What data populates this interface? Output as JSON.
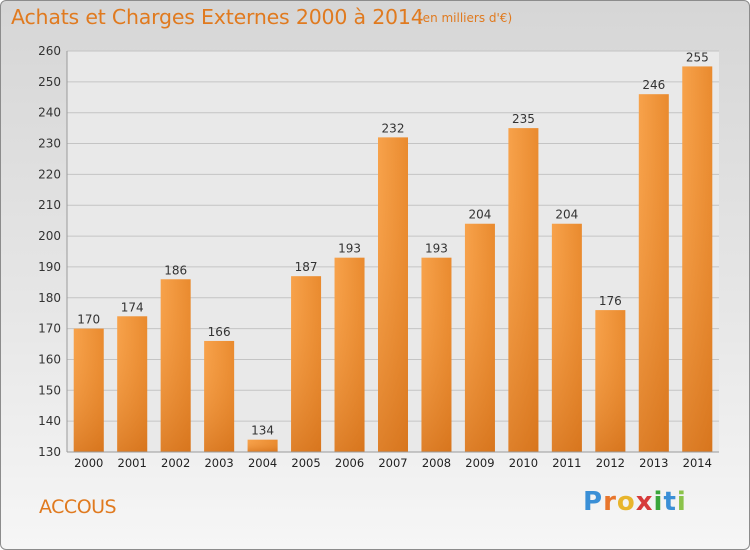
{
  "chart_data": {
    "type": "bar",
    "title": "Achats et Charges Externes 2000 à 2014",
    "subtitle": "(en milliers d'€)",
    "categories": [
      "2000",
      "2001",
      "2002",
      "2003",
      "2004",
      "2005",
      "2006",
      "2007",
      "2008",
      "2009",
      "2010",
      "2011",
      "2012",
      "2013",
      "2014"
    ],
    "values": [
      170,
      174,
      186,
      166,
      134,
      187,
      193,
      232,
      193,
      204,
      235,
      204,
      176,
      246,
      255
    ],
    "ylim": [
      130,
      260
    ],
    "yticks": [
      130,
      140,
      150,
      160,
      170,
      180,
      190,
      200,
      210,
      220,
      230,
      240,
      250,
      260
    ],
    "grid": true,
    "bar_color": "#f39a3e",
    "bar_color_dark": "#d9731a"
  },
  "commune": "ACCOUS",
  "logo": {
    "letters": [
      "P",
      "r",
      "o",
      "x",
      "i",
      "t",
      "i"
    ],
    "colors": [
      "#3a8fd6",
      "#e8762c",
      "#e8b52c",
      "#d63a3a",
      "#3aa63a",
      "#3a8fd6",
      "#8bc34a"
    ]
  }
}
